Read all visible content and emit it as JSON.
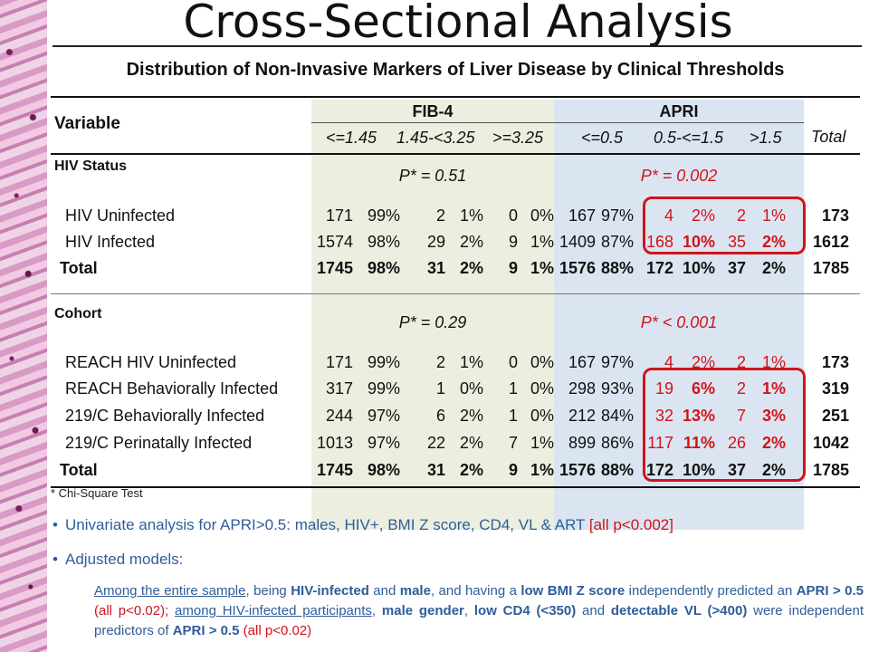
{
  "slide_title": "Cross-Sectional Analysis",
  "table": {
    "title": "Distribution of Non-Invasive Markers of Liver Disease by Clinical Thresholds",
    "variable_header": "Variable",
    "fib4_header": "FIB-4",
    "apri_header": "APRI",
    "total_header": "Total",
    "fib4_thresholds": [
      "<=1.45",
      "1.45-<3.25",
      ">=3.25"
    ],
    "apri_thresholds": [
      "<=0.5",
      "0.5-<=1.5",
      ">1.5"
    ],
    "sections": [
      {
        "label": "HIV Status",
        "fib4_p": "P* = 0.51",
        "apri_p": "P* = 0.002",
        "rows": [
          {
            "label": "HIV Uninfected",
            "cells": [
              "171",
              "99%",
              "2",
              "1%",
              "0",
              "0%",
              "167",
              "97%",
              "4",
              "2%",
              "2",
              "1%"
            ],
            "total": "173"
          },
          {
            "label": "HIV Infected",
            "cells": [
              "1574",
              "98%",
              "29",
              "2%",
              "9",
              "1%",
              "1409",
              "87%",
              "168",
              "10%",
              "35",
              "2%"
            ],
            "total": "1612"
          },
          {
            "label": "Total",
            "cells": [
              "1745",
              "98%",
              "31",
              "2%",
              "9",
              "1%",
              "1576",
              "88%",
              "172",
              "10%",
              "37",
              "2%"
            ],
            "total": "1785"
          }
        ]
      },
      {
        "label": "Cohort",
        "fib4_p": "P* = 0.29",
        "apri_p": "P* < 0.001",
        "rows": [
          {
            "label": "REACH HIV Uninfected",
            "cells": [
              "171",
              "99%",
              "2",
              "1%",
              "0",
              "0%",
              "167",
              "97%",
              "4",
              "2%",
              "2",
              "1%"
            ],
            "total": "173"
          },
          {
            "label": "REACH Behaviorally Infected",
            "cells": [
              "317",
              "99%",
              "1",
              "0%",
              "1",
              "0%",
              "298",
              "93%",
              "19",
              "6%",
              "2",
              "1%"
            ],
            "total": "319"
          },
          {
            "label": "219/C Behaviorally Infected",
            "cells": [
              "244",
              "97%",
              "6",
              "2%",
              "1",
              "0%",
              "212",
              "84%",
              "32",
              "13%",
              "7",
              "3%"
            ],
            "total": "251"
          },
          {
            "label": "219/C Perinatally Infected",
            "cells": [
              "1013",
              "97%",
              "22",
              "2%",
              "7",
              "1%",
              "899",
              "86%",
              "117",
              "11%",
              "26",
              "2%"
            ],
            "total": "1042"
          },
          {
            "label": "Total",
            "cells": [
              "1745",
              "98%",
              "31",
              "2%",
              "9",
              "1%",
              "1576",
              "88%",
              "172",
              "10%",
              "37",
              "2%"
            ],
            "total": "1785"
          }
        ]
      }
    ],
    "footnote": "* Chi-Square Test"
  },
  "bullets": [
    {
      "text": "Univariate analysis for APRI>0.5: males, HIV+, BMI Z score, CD4, VL & ART ",
      "red_text": "[all p<0.002]"
    },
    {
      "text": "Adjusted models:"
    }
  ],
  "paragraph": {
    "p1": "Among the entire sample",
    "p2": ", being ",
    "p3": "HIV-infected",
    "p4": " and ",
    "p5": "male",
    "p6": ", and having a ",
    "p7": "low BMI Z score",
    "p8": " independently predicted an ",
    "p9": "APRI > 0.5",
    "p10": " (all p<0.02); ",
    "p11": "among HIV-infected participants",
    "p12": ", ",
    "p13": "male gender",
    "p14": ", ",
    "p15": "low CD4 (<350)",
    "p16": " and ",
    "p17": "detectable VL (>400)",
    "p18": " were independent predictors of ",
    "p19": "APRI > 0.5",
    "p20": " (all p<0.02)"
  },
  "colors": {
    "accent_red": "#d0141b",
    "text_blue": "#2e5d9a",
    "fib4_bg": "#ecefdf",
    "apri_bg": "#dbe5f1"
  }
}
